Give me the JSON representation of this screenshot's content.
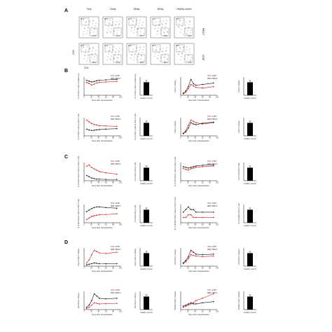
{
  "panels": {
    "A": "A",
    "B": "B",
    "C": "C",
    "D": "D"
  },
  "flow": {
    "columns": [
      "7day",
      "21day",
      "28day",
      "60day",
      "Healthy control"
    ],
    "rows": [
      {
        "label": "PBSCT",
        "top": [
          "20.7",
          "66.1",
          "67.1",
          "71.4",
          "37.6"
        ],
        "bottom": [
          "67.0",
          "24.7",
          "27.7",
          "25.5",
          "49.5"
        ]
      },
      {
        "label": "UCBT",
        "top": [
          "16.0",
          "40.4",
          "40.0",
          "39.1",
          "28.1"
        ],
        "bottom": [
          "82.0",
          "57.0",
          "58.0",
          "58.6",
          "71.3"
        ]
      }
    ],
    "xlabel": "CD4",
    "ylabel": "CD8"
  },
  "legend": {
    "ucbt": "UCBT",
    "pbsct": "PBSCT"
  },
  "colors": {
    "ucbt": "#d62020",
    "pbsct": "#111111",
    "bar": "#000000"
  },
  "common": {
    "xlabel": "Days after transplantation",
    "bar_xlabel": "Healthy control"
  },
  "chart_data": [
    {
      "type": "line",
      "ylabel": "% of CD3+T cells in lymphocyte",
      "x": [
        7,
        14,
        21,
        28,
        35,
        42,
        60,
        90
      ],
      "series": [
        {
          "name": "UCBT",
          "values": [
            60,
            55,
            48,
            52,
            58,
            60,
            62,
            65
          ]
        },
        {
          "name": "PBSCT",
          "values": [
            70,
            66,
            62,
            64,
            68,
            70,
            72,
            74
          ]
        }
      ]
    },
    {
      "type": "bar",
      "ylabel": "% of CD3+ cells in lymphocyte",
      "categories": [
        "Healthy control"
      ],
      "values": [
        65
      ]
    },
    {
      "type": "line",
      "ylabel": "CD3+T cells/μL",
      "x": [
        7,
        14,
        21,
        28,
        35,
        42,
        60,
        90
      ],
      "series": [
        {
          "name": "UCBT",
          "values": [
            200,
            400,
            900,
            1500,
            1300,
            1100,
            1000,
            1200
          ]
        },
        {
          "name": "PBSCT",
          "values": [
            300,
            600,
            1200,
            2200,
            1600,
            1400,
            1500,
            1700
          ]
        }
      ]
    },
    {
      "type": "bar",
      "ylabel": "CD3+T cells/μL",
      "categories": [
        "Healthy control"
      ],
      "values": [
        1400
      ]
    },
    {
      "type": "line",
      "ylabel": "% of CD4+T cells in CD3+T cells",
      "x": [
        7,
        14,
        21,
        28,
        35,
        42,
        60,
        90
      ],
      "series": [
        {
          "name": "UCBT",
          "values": [
            70,
            62,
            55,
            50,
            48,
            45,
            44,
            42
          ]
        },
        {
          "name": "PBSCT",
          "values": [
            30,
            26,
            24,
            25,
            27,
            28,
            30,
            32
          ]
        }
      ]
    },
    {
      "type": "bar",
      "ylabel": "% of CD4+T cells in CD3+T cells",
      "categories": [
        "Healthy control"
      ],
      "values": [
        40
      ]
    },
    {
      "type": "line",
      "ylabel": "CD4+T cells/μL",
      "x": [
        7,
        14,
        21,
        28,
        35,
        42,
        60,
        90
      ],
      "series": [
        {
          "name": "UCBT",
          "values": [
            100,
            200,
            400,
            600,
            550,
            500,
            450,
            500
          ]
        },
        {
          "name": "PBSCT",
          "values": [
            80,
            150,
            300,
            500,
            450,
            420,
            480,
            520
          ]
        }
      ]
    },
    {
      "type": "bar",
      "ylabel": "CD4+T cells/μL",
      "categories": [
        "Healthy control"
      ],
      "values": [
        600
      ]
    },
    {
      "type": "line",
      "ylabel": "% of naive CD4+T cells in CD4+T cells",
      "x": [
        7,
        14,
        21,
        28,
        35,
        42,
        60,
        90
      ],
      "series": [
        {
          "name": "UCBT",
          "values": [
            55,
            60,
            50,
            45,
            40,
            35,
            30,
            25
          ]
        },
        {
          "name": "PBSCT",
          "values": [
            20,
            15,
            10,
            8,
            6,
            6,
            5,
            5
          ]
        }
      ]
    },
    {
      "type": "bar",
      "ylabel": "% of naive CD4+T cells",
      "categories": [
        "Healthy control"
      ],
      "values": [
        45
      ]
    },
    {
      "type": "line",
      "ylabel": "% of CM CD4+T cells in CD4+T cells",
      "x": [
        7,
        14,
        21,
        28,
        35,
        42,
        60,
        90
      ],
      "series": [
        {
          "name": "UCBT",
          "values": [
            35,
            32,
            30,
            34,
            36,
            38,
            40,
            42
          ]
        },
        {
          "name": "PBSCT",
          "values": [
            40,
            38,
            36,
            38,
            40,
            42,
            44,
            45
          ]
        }
      ]
    },
    {
      "type": "bar",
      "ylabel": "% of CM CD4+T cells",
      "categories": [
        "Healthy control"
      ],
      "values": [
        38
      ]
    },
    {
      "type": "line",
      "ylabel": "% of EM CD4+T cells in CD4+T cells",
      "x": [
        7,
        14,
        21,
        28,
        35,
        42,
        60,
        90
      ],
      "series": [
        {
          "name": "UCBT",
          "values": [
            10,
            15,
            20,
            22,
            24,
            25,
            26,
            28
          ]
        },
        {
          "name": "PBSCT",
          "values": [
            35,
            40,
            45,
            48,
            50,
            50,
            48,
            46
          ]
        }
      ]
    },
    {
      "type": "bar",
      "ylabel": "% of EM CD4+T cells",
      "categories": [
        "Healthy control"
      ],
      "values": [
        20
      ]
    },
    {
      "type": "line",
      "ylabel": "% of TEMRA CD4+T cells in CD4+T cells",
      "x": [
        7,
        14,
        21,
        28,
        35,
        42,
        60,
        90
      ],
      "series": [
        {
          "name": "UCBT",
          "values": [
            2,
            2,
            3,
            3,
            2,
            2,
            2,
            2
          ]
        },
        {
          "name": "PBSCT",
          "values": [
            4,
            5,
            6,
            5,
            5,
            4,
            4,
            4
          ]
        }
      ]
    },
    {
      "type": "bar",
      "ylabel": "% of TEMRA CD4+T cells",
      "categories": [
        "Healthy control"
      ],
      "values": [
        3
      ]
    },
    {
      "type": "line",
      "ylabel": "Naive CD4+T cells/μL",
      "x": [
        7,
        14,
        21,
        28,
        35,
        42,
        60,
        90
      ],
      "series": [
        {
          "name": "UCBT",
          "values": [
            50,
            100,
            180,
            250,
            230,
            210,
            200,
            220
          ]
        },
        {
          "name": "PBSCT",
          "values": [
            20,
            30,
            40,
            50,
            45,
            40,
            38,
            40
          ]
        }
      ]
    },
    {
      "type": "bar",
      "ylabel": "Naive CD4+T cells/μL",
      "categories": [
        "Healthy control"
      ],
      "values": [
        280
      ]
    },
    {
      "type": "line",
      "ylabel": "CM CD4+T cells/μL",
      "x": [
        7,
        14,
        21,
        28,
        35,
        42,
        60,
        90
      ],
      "series": [
        {
          "name": "UCBT",
          "values": [
            40,
            70,
            120,
            180,
            170,
            160,
            150,
            160
          ]
        },
        {
          "name": "PBSCT",
          "values": [
            50,
            90,
            150,
            250,
            220,
            190,
            180,
            190
          ]
        }
      ]
    },
    {
      "type": "bar",
      "ylabel": "CM CD4+T cells/μL",
      "categories": [
        "Healthy control"
      ],
      "values": [
        220
      ]
    },
    {
      "type": "line",
      "ylabel": "EM CD4+T cells/μL",
      "x": [
        7,
        14,
        21,
        28,
        35,
        42,
        60,
        90
      ],
      "series": [
        {
          "name": "UCBT",
          "values": [
            10,
            20,
            40,
            60,
            55,
            50,
            52,
            55
          ]
        },
        {
          "name": "PBSCT",
          "values": [
            20,
            40,
            80,
            140,
            120,
            100,
            95,
            100
          ]
        }
      ]
    },
    {
      "type": "bar",
      "ylabel": "EM CD4+T cells/μL",
      "categories": [
        "Healthy control"
      ],
      "values": [
        90
      ]
    },
    {
      "type": "line",
      "ylabel": "TEMRA CD4+T cells/μL",
      "x": [
        7,
        14,
        21,
        28,
        35,
        42,
        60,
        90
      ],
      "series": [
        {
          "name": "UCBT",
          "values": [
            2,
            3,
            4,
            5,
            6,
            8,
            10,
            14
          ]
        },
        {
          "name": "PBSCT",
          "values": [
            3,
            4,
            5,
            6,
            5,
            5,
            6,
            7
          ]
        }
      ]
    },
    {
      "type": "bar",
      "ylabel": "TEMRA CD4+T cells/μL",
      "categories": [
        "Healthy control"
      ],
      "values": [
        12
      ]
    }
  ]
}
